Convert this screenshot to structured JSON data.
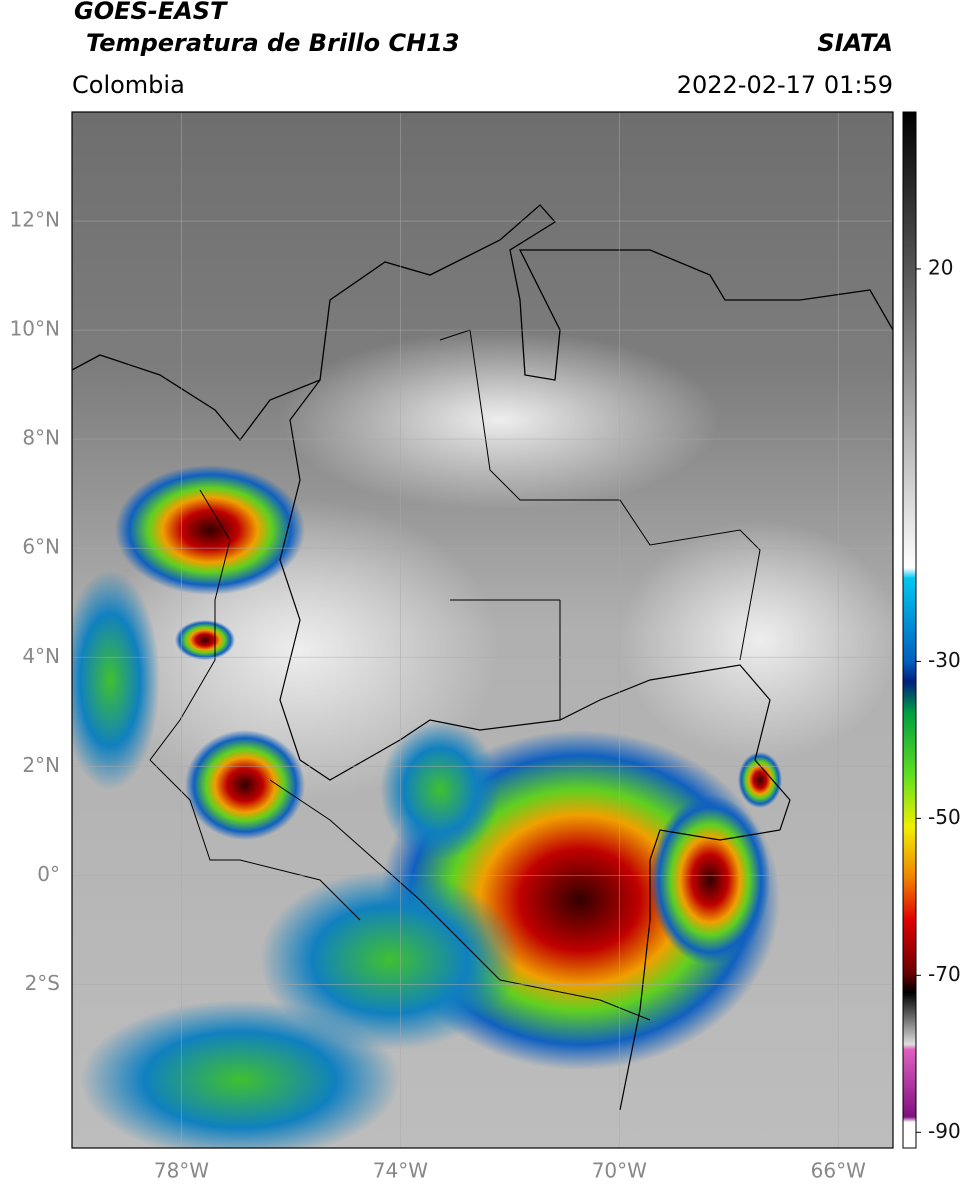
{
  "header": {
    "title": "GOES-EAST",
    "subtitle": "Temperatura de Brillo CH13",
    "source": "SIATA",
    "region": "Colombia",
    "datetime": "2022-02-17 01:59"
  },
  "map": {
    "xlim": [
      -80,
      -65
    ],
    "ylim": [
      -5,
      14
    ],
    "grid": true,
    "xticks": [
      {
        "value": -78,
        "label": "78°W"
      },
      {
        "value": -74,
        "label": "74°W"
      },
      {
        "value": -70,
        "label": "70°W"
      },
      {
        "value": -66,
        "label": "66°W"
      }
    ],
    "yticks": [
      {
        "value": 12,
        "label": "12°N"
      },
      {
        "value": 10,
        "label": "10°N"
      },
      {
        "value": 8,
        "label": "8°N"
      },
      {
        "value": 6,
        "label": "6°N"
      },
      {
        "value": 4,
        "label": "4°N"
      },
      {
        "value": 2,
        "label": "2°N"
      },
      {
        "value": 0,
        "label": "0°"
      },
      {
        "value": -2,
        "label": "2°S"
      }
    ]
  },
  "colorbar": {
    "lim": [
      -92,
      40
    ],
    "ticks": [
      20,
      -30,
      -50,
      -70,
      -90
    ]
  }
}
